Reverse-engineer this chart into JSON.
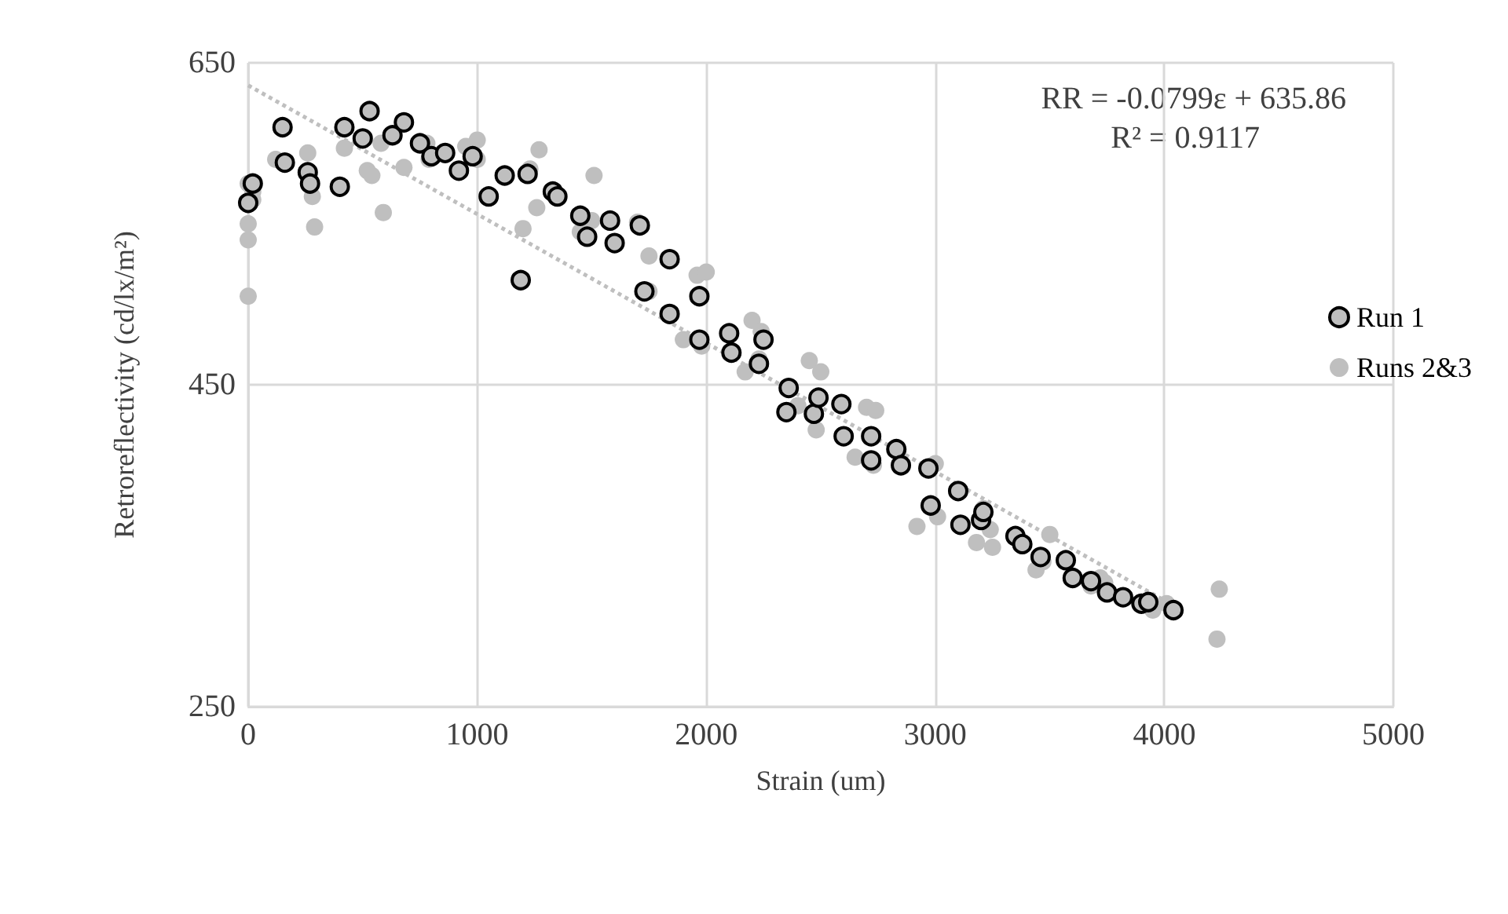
{
  "chart_data": {
    "type": "scatter",
    "xlabel": "Strain (um)",
    "ylabel": "Retroreflectivity (cd/lx/m²)",
    "xlim": [
      0,
      5000
    ],
    "xticks": [
      0,
      1000,
      2000,
      3000,
      4000,
      5000
    ],
    "ylim": [
      250,
      650
    ],
    "yticks": [
      250,
      450,
      650
    ],
    "grid": true,
    "legend": "right",
    "marker": "circle",
    "annotations": [
      "RR = -0.0799ε + 635.86",
      "R² = 0.9117"
    ],
    "series": [
      {
        "name": "Run 1",
        "color": "#bfbfbf",
        "x": [
          0,
          20,
          150,
          160,
          260,
          270,
          400,
          420,
          500,
          530,
          630,
          680,
          750,
          800,
          860,
          920,
          980,
          1050,
          1120,
          1190,
          1220,
          1330,
          1350,
          1450,
          1480,
          1580,
          1600,
          1710,
          1730,
          1840,
          1840,
          1970,
          1970,
          2100,
          2110,
          2230,
          2250,
          2360,
          2350,
          2470,
          2490,
          2590,
          2600,
          2720,
          2720,
          2830,
          2850,
          2970,
          2980,
          3100,
          3110,
          3200,
          3210,
          3350,
          3380,
          3460,
          3570,
          3600,
          3680,
          3750,
          3820,
          3900,
          3930,
          4040
        ],
        "values": [
          563,
          575,
          610,
          588,
          582,
          575,
          573,
          610,
          603,
          620,
          605,
          613,
          600,
          592,
          594,
          583,
          592,
          567,
          580,
          515,
          581,
          570,
          567,
          555,
          542,
          552,
          538,
          549,
          508,
          528,
          494,
          505,
          478,
          482,
          470,
          463,
          478,
          448,
          433,
          432,
          442,
          438,
          418,
          418,
          403,
          410,
          400,
          398,
          375,
          384,
          363,
          366,
          371,
          356,
          351,
          343,
          341,
          330,
          328,
          321,
          318,
          314,
          315,
          310
        ]
      },
      {
        "name": "Runs 2&3",
        "color": "#bfbfbf",
        "x": [
          0,
          0,
          0,
          0,
          20,
          20,
          120,
          260,
          280,
          290,
          420,
          520,
          540,
          580,
          590,
          680,
          780,
          790,
          950,
          1000,
          1000,
          1200,
          1230,
          1260,
          1270,
          1450,
          1500,
          1510,
          1700,
          1750,
          1750,
          1900,
          1960,
          1980,
          2000,
          2170,
          2200,
          2230,
          2240,
          2400,
          2450,
          2480,
          2500,
          2650,
          2700,
          2730,
          2740,
          2920,
          3000,
          3010,
          3180,
          3210,
          3240,
          3250,
          3440,
          3470,
          3500,
          3680,
          3720,
          3740,
          3950,
          4010,
          4230,
          4240
        ],
        "values": [
          575,
          550,
          540,
          505,
          570,
          565,
          590,
          594,
          567,
          548,
          597,
          583,
          580,
          600,
          557,
          585,
          600,
          590,
          598,
          602,
          590,
          547,
          584,
          560,
          596,
          545,
          552,
          580,
          551,
          530,
          508,
          478,
          518,
          474,
          520,
          458,
          490,
          466,
          483,
          437,
          465,
          422,
          458,
          405,
          436,
          400,
          434,
          362,
          401,
          368,
          352,
          373,
          360,
          349,
          335,
          340,
          357,
          325,
          330,
          327,
          310,
          314,
          292,
          323
        ]
      },
      {
        "type": "line",
        "color": "#bfbfbf",
        "line_style": "dotted",
        "marker": "none",
        "x": [
          0,
          4050
        ],
        "values": [
          636,
          312
        ]
      }
    ]
  }
}
